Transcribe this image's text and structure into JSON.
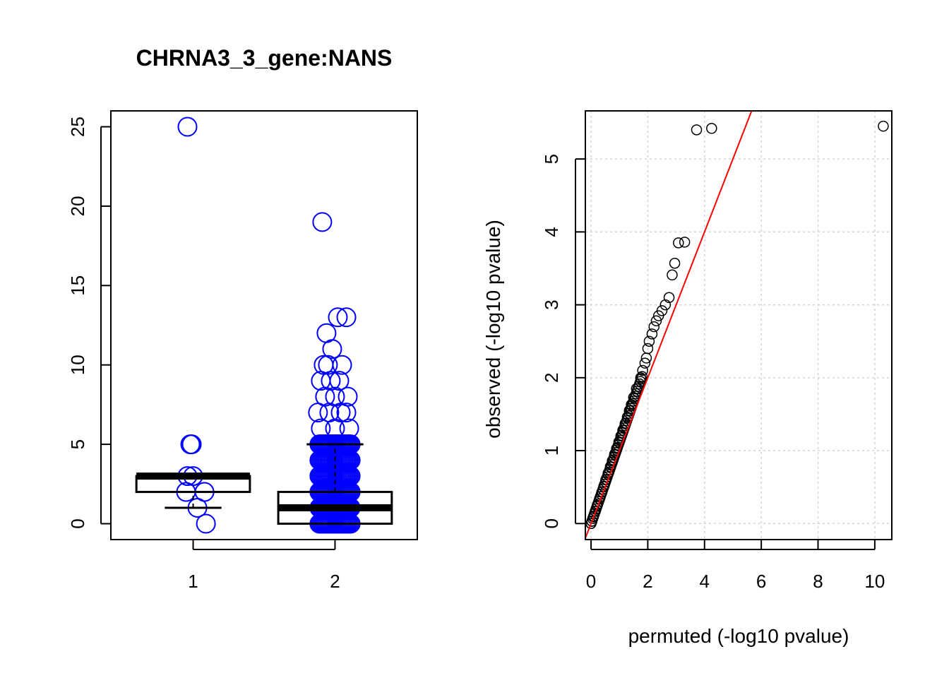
{
  "page_title": "CHRNA3_3_gene:NANS",
  "chart_data": [
    {
      "type": "boxplot",
      "title": "CHRNA3_3_gene:NANS",
      "xlabel": "",
      "ylabel": "",
      "categories": [
        "1",
        "2"
      ],
      "ylim": [
        -1,
        26
      ],
      "yticks": [
        0,
        5,
        10,
        15,
        20,
        25
      ],
      "ytick_labels": [
        "0",
        "5",
        "10",
        "15",
        "20",
        "25"
      ],
      "grid": false,
      "point_color": "#0000ff",
      "boxes": [
        {
          "category": "1",
          "whisker_low": 1,
          "q1": 2,
          "median": 3,
          "q3": 3,
          "whisker_high": 3
        },
        {
          "category": "2",
          "whisker_low": 0,
          "q1": 0,
          "median": 1,
          "q3": 2,
          "whisker_high": 5
        }
      ],
      "points": [
        {
          "group": 1,
          "x": 0.96,
          "y": 25
        },
        {
          "group": 1,
          "x": 0.98,
          "y": 5
        },
        {
          "group": 1,
          "x": 0.99,
          "y": 5
        },
        {
          "group": 1,
          "x": 0.96,
          "y": 3
        },
        {
          "group": 1,
          "x": 1.0,
          "y": 3
        },
        {
          "group": 1,
          "x": 0.95,
          "y": 2
        },
        {
          "group": 1,
          "x": 1.08,
          "y": 2
        },
        {
          "group": 1,
          "x": 1.03,
          "y": 1
        },
        {
          "group": 1,
          "x": 1.09,
          "y": 0
        },
        {
          "group": 2,
          "x": 1.91,
          "y": 19
        },
        {
          "group": 2,
          "x": 2.02,
          "y": 13
        },
        {
          "group": 2,
          "x": 2.08,
          "y": 13
        },
        {
          "group": 2,
          "x": 1.94,
          "y": 12
        },
        {
          "group": 2,
          "x": 1.98,
          "y": 11
        },
        {
          "group": 2,
          "x": 1.92,
          "y": 10
        },
        {
          "group": 2,
          "x": 1.95,
          "y": 10
        },
        {
          "group": 2,
          "x": 2.05,
          "y": 10
        },
        {
          "group": 2,
          "x": 1.9,
          "y": 9
        },
        {
          "group": 2,
          "x": 1.97,
          "y": 9
        },
        {
          "group": 2,
          "x": 2.03,
          "y": 9
        },
        {
          "group": 2,
          "x": 1.93,
          "y": 8
        },
        {
          "group": 2,
          "x": 2.0,
          "y": 8
        },
        {
          "group": 2,
          "x": 2.09,
          "y": 8
        },
        {
          "group": 2,
          "x": 1.88,
          "y": 7
        },
        {
          "group": 2,
          "x": 1.96,
          "y": 7
        },
        {
          "group": 2,
          "x": 2.04,
          "y": 7
        },
        {
          "group": 2,
          "x": 2.08,
          "y": 7
        },
        {
          "group": 2,
          "x": 1.9,
          "y": 6
        },
        {
          "group": 2,
          "x": 2.0,
          "y": 6
        },
        {
          "group": 2,
          "x": 2.1,
          "y": 6
        }
      ],
      "dense_points": {
        "group": 2,
        "x_spread": 0.11,
        "y_values": [
          0,
          1,
          2,
          3,
          4,
          5
        ]
      }
    },
    {
      "type": "scatter",
      "title": "",
      "xlabel": "permuted (-log10 pvalue)",
      "ylabel": "observed (-log10 pvalue)",
      "xlim": [
        -0.2,
        10.6
      ],
      "ylim": [
        -0.22,
        5.66
      ],
      "xticks": [
        0,
        2,
        4,
        6,
        8,
        10
      ],
      "xtick_labels": [
        "0",
        "2",
        "4",
        "6",
        "8",
        "10"
      ],
      "yticks": [
        0,
        1,
        2,
        3,
        4,
        5
      ],
      "ytick_labels": [
        "0",
        "1",
        "2",
        "3",
        "4",
        "5"
      ],
      "grid": true,
      "point_color": "#000000",
      "reference_line": {
        "color": "#ff0000",
        "intercept": 0,
        "slope": 1
      },
      "points": [
        [
          10.3,
          5.45
        ],
        [
          4.25,
          5.42
        ],
        [
          3.72,
          5.4
        ],
        [
          3.3,
          3.86
        ],
        [
          3.08,
          3.85
        ],
        [
          2.95,
          3.57
        ],
        [
          2.86,
          3.41
        ],
        [
          2.75,
          3.1
        ],
        [
          2.62,
          3.0
        ],
        [
          2.5,
          2.92
        ],
        [
          2.38,
          2.85
        ],
        [
          2.3,
          2.78
        ],
        [
          2.22,
          2.7
        ],
        [
          2.15,
          2.6
        ],
        [
          2.05,
          2.5
        ],
        [
          2.0,
          2.4
        ],
        [
          1.95,
          2.27
        ],
        [
          1.9,
          2.2
        ],
        [
          1.82,
          2.1
        ],
        [
          1.75,
          2.0
        ],
        [
          1.6,
          1.85
        ],
        [
          1.5,
          1.73
        ],
        [
          1.42,
          1.63
        ],
        [
          1.35,
          1.55
        ],
        [
          1.28,
          1.46
        ],
        [
          1.2,
          1.37
        ],
        [
          1.12,
          1.28
        ],
        [
          1.05,
          1.2
        ],
        [
          0.98,
          1.12
        ],
        [
          0.9,
          1.03
        ],
        [
          0.83,
          0.95
        ],
        [
          0.75,
          0.86
        ],
        [
          0.68,
          0.78
        ],
        [
          0.6,
          0.69
        ],
        [
          0.52,
          0.6
        ],
        [
          0.45,
          0.51
        ],
        [
          0.38,
          0.43
        ],
        [
          0.3,
          0.34
        ],
        [
          0.22,
          0.25
        ],
        [
          0.15,
          0.17
        ],
        [
          0.08,
          0.09
        ],
        [
          0.03,
          0.03
        ],
        [
          0.0,
          0.0
        ]
      ],
      "dense_band": {
        "x_start": 0.0,
        "x_end": 1.8,
        "y_ratio": 1.12
      }
    }
  ]
}
